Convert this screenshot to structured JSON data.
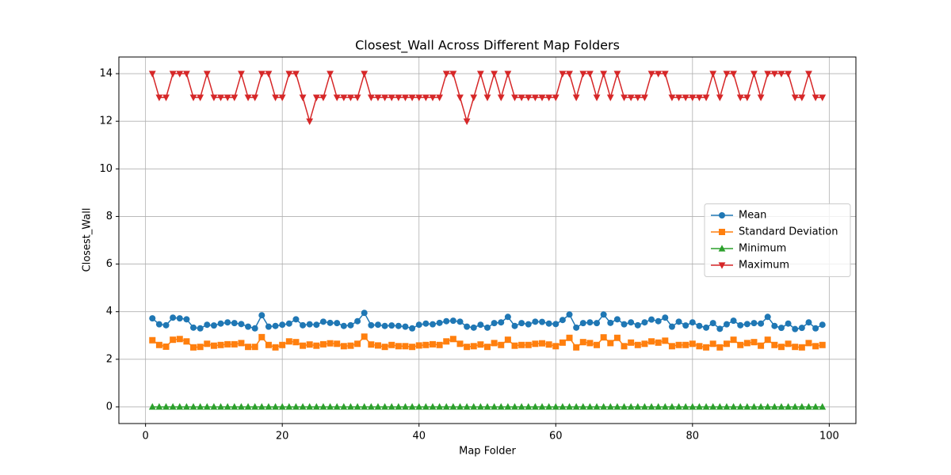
{
  "chart_data": {
    "type": "line",
    "title": "Closest_Wall Across Different Map Folders",
    "xlabel": "Map Folder",
    "ylabel": "Closest_Wall",
    "x": [
      1,
      2,
      3,
      4,
      5,
      6,
      7,
      8,
      9,
      10,
      11,
      12,
      13,
      14,
      15,
      16,
      17,
      18,
      19,
      20,
      21,
      22,
      23,
      24,
      25,
      26,
      27,
      28,
      29,
      30,
      31,
      32,
      33,
      34,
      35,
      36,
      37,
      38,
      39,
      40,
      41,
      42,
      43,
      44,
      45,
      46,
      47,
      48,
      49,
      50,
      51,
      52,
      53,
      54,
      55,
      56,
      57,
      58,
      59,
      60,
      61,
      62,
      63,
      64,
      65,
      66,
      67,
      68,
      69,
      70,
      71,
      72,
      73,
      74,
      75,
      76,
      77,
      78,
      79,
      80,
      81,
      82,
      83,
      84,
      85,
      86,
      87,
      88,
      89,
      90,
      91,
      92,
      93,
      94,
      95,
      96,
      97,
      98,
      99
    ],
    "series": [
      {
        "name": "Mean",
        "color": "#1f77b4",
        "marker": "circle",
        "values": [
          3.72,
          3.47,
          3.43,
          3.75,
          3.72,
          3.68,
          3.33,
          3.3,
          3.45,
          3.42,
          3.5,
          3.55,
          3.52,
          3.48,
          3.37,
          3.3,
          3.85,
          3.37,
          3.4,
          3.45,
          3.5,
          3.68,
          3.43,
          3.47,
          3.45,
          3.58,
          3.53,
          3.52,
          3.4,
          3.43,
          3.6,
          3.95,
          3.43,
          3.45,
          3.4,
          3.42,
          3.4,
          3.37,
          3.3,
          3.45,
          3.5,
          3.47,
          3.53,
          3.6,
          3.62,
          3.58,
          3.37,
          3.33,
          3.45,
          3.33,
          3.52,
          3.55,
          3.78,
          3.4,
          3.52,
          3.47,
          3.58,
          3.57,
          3.5,
          3.48,
          3.65,
          3.88,
          3.33,
          3.52,
          3.55,
          3.52,
          3.88,
          3.53,
          3.68,
          3.47,
          3.55,
          3.43,
          3.55,
          3.67,
          3.6,
          3.75,
          3.37,
          3.58,
          3.42,
          3.55,
          3.4,
          3.33,
          3.52,
          3.28,
          3.47,
          3.62,
          3.43,
          3.48,
          3.52,
          3.5,
          3.78,
          3.4,
          3.32,
          3.5,
          3.27,
          3.32,
          3.55,
          3.3,
          3.45
        ]
      },
      {
        "name": "Standard Deviation",
        "color": "#ff7f0e",
        "marker": "square",
        "values": [
          2.8,
          2.6,
          2.53,
          2.82,
          2.85,
          2.75,
          2.5,
          2.52,
          2.65,
          2.57,
          2.6,
          2.63,
          2.63,
          2.68,
          2.52,
          2.52,
          2.93,
          2.6,
          2.5,
          2.6,
          2.75,
          2.72,
          2.57,
          2.62,
          2.57,
          2.63,
          2.67,
          2.65,
          2.55,
          2.57,
          2.65,
          2.95,
          2.62,
          2.58,
          2.52,
          2.6,
          2.55,
          2.55,
          2.52,
          2.58,
          2.6,
          2.63,
          2.6,
          2.75,
          2.85,
          2.65,
          2.52,
          2.55,
          2.62,
          2.52,
          2.68,
          2.6,
          2.82,
          2.57,
          2.6,
          2.6,
          2.65,
          2.67,
          2.62,
          2.55,
          2.7,
          2.9,
          2.5,
          2.72,
          2.68,
          2.6,
          2.92,
          2.68,
          2.9,
          2.55,
          2.7,
          2.6,
          2.65,
          2.75,
          2.7,
          2.78,
          2.55,
          2.6,
          2.6,
          2.65,
          2.55,
          2.5,
          2.65,
          2.5,
          2.65,
          2.82,
          2.6,
          2.68,
          2.72,
          2.57,
          2.82,
          2.6,
          2.52,
          2.65,
          2.52,
          2.5,
          2.68,
          2.55,
          2.6
        ]
      },
      {
        "name": "Minimum",
        "color": "#2ca02c",
        "marker": "triangle-up",
        "values": [
          0,
          0,
          0,
          0,
          0,
          0,
          0,
          0,
          0,
          0,
          0,
          0,
          0,
          0,
          0,
          0,
          0,
          0,
          0,
          0,
          0,
          0,
          0,
          0,
          0,
          0,
          0,
          0,
          0,
          0,
          0,
          0,
          0,
          0,
          0,
          0,
          0,
          0,
          0,
          0,
          0,
          0,
          0,
          0,
          0,
          0,
          0,
          0,
          0,
          0,
          0,
          0,
          0,
          0,
          0,
          0,
          0,
          0,
          0,
          0,
          0,
          0,
          0,
          0,
          0,
          0,
          0,
          0,
          0,
          0,
          0,
          0,
          0,
          0,
          0,
          0,
          0,
          0,
          0,
          0,
          0,
          0,
          0,
          0,
          0,
          0,
          0,
          0,
          0,
          0,
          0,
          0,
          0,
          0,
          0,
          0,
          0,
          0,
          0
        ]
      },
      {
        "name": "Maximum",
        "color": "#d62728",
        "marker": "triangle-down",
        "values": [
          14,
          13,
          13,
          14,
          14,
          14,
          13,
          13,
          14,
          13,
          13,
          13,
          13,
          14,
          13,
          13,
          14,
          14,
          13,
          13,
          14,
          14,
          13,
          12,
          13,
          13,
          14,
          13,
          13,
          13,
          13,
          14,
          13,
          13,
          13,
          13,
          13,
          13,
          13,
          13,
          13,
          13,
          13,
          14,
          14,
          13,
          12,
          13,
          14,
          13,
          14,
          13,
          14,
          13,
          13,
          13,
          13,
          13,
          13,
          13,
          14,
          14,
          13,
          14,
          14,
          13,
          14,
          13,
          14,
          13,
          13,
          13,
          13,
          14,
          14,
          14,
          13,
          13,
          13,
          13,
          13,
          13,
          14,
          13,
          14,
          14,
          13,
          13,
          14,
          13,
          14,
          14,
          14,
          14,
          13,
          13,
          14,
          13,
          13
        ]
      }
    ],
    "xlim": [
      -3.9,
      103.9
    ],
    "ylim": [
      -0.7,
      14.7
    ],
    "xticks": [
      0,
      20,
      40,
      60,
      80,
      100
    ],
    "yticks": [
      0,
      2,
      4,
      6,
      8,
      10,
      12,
      14
    ],
    "grid": true,
    "legend": "center right"
  }
}
